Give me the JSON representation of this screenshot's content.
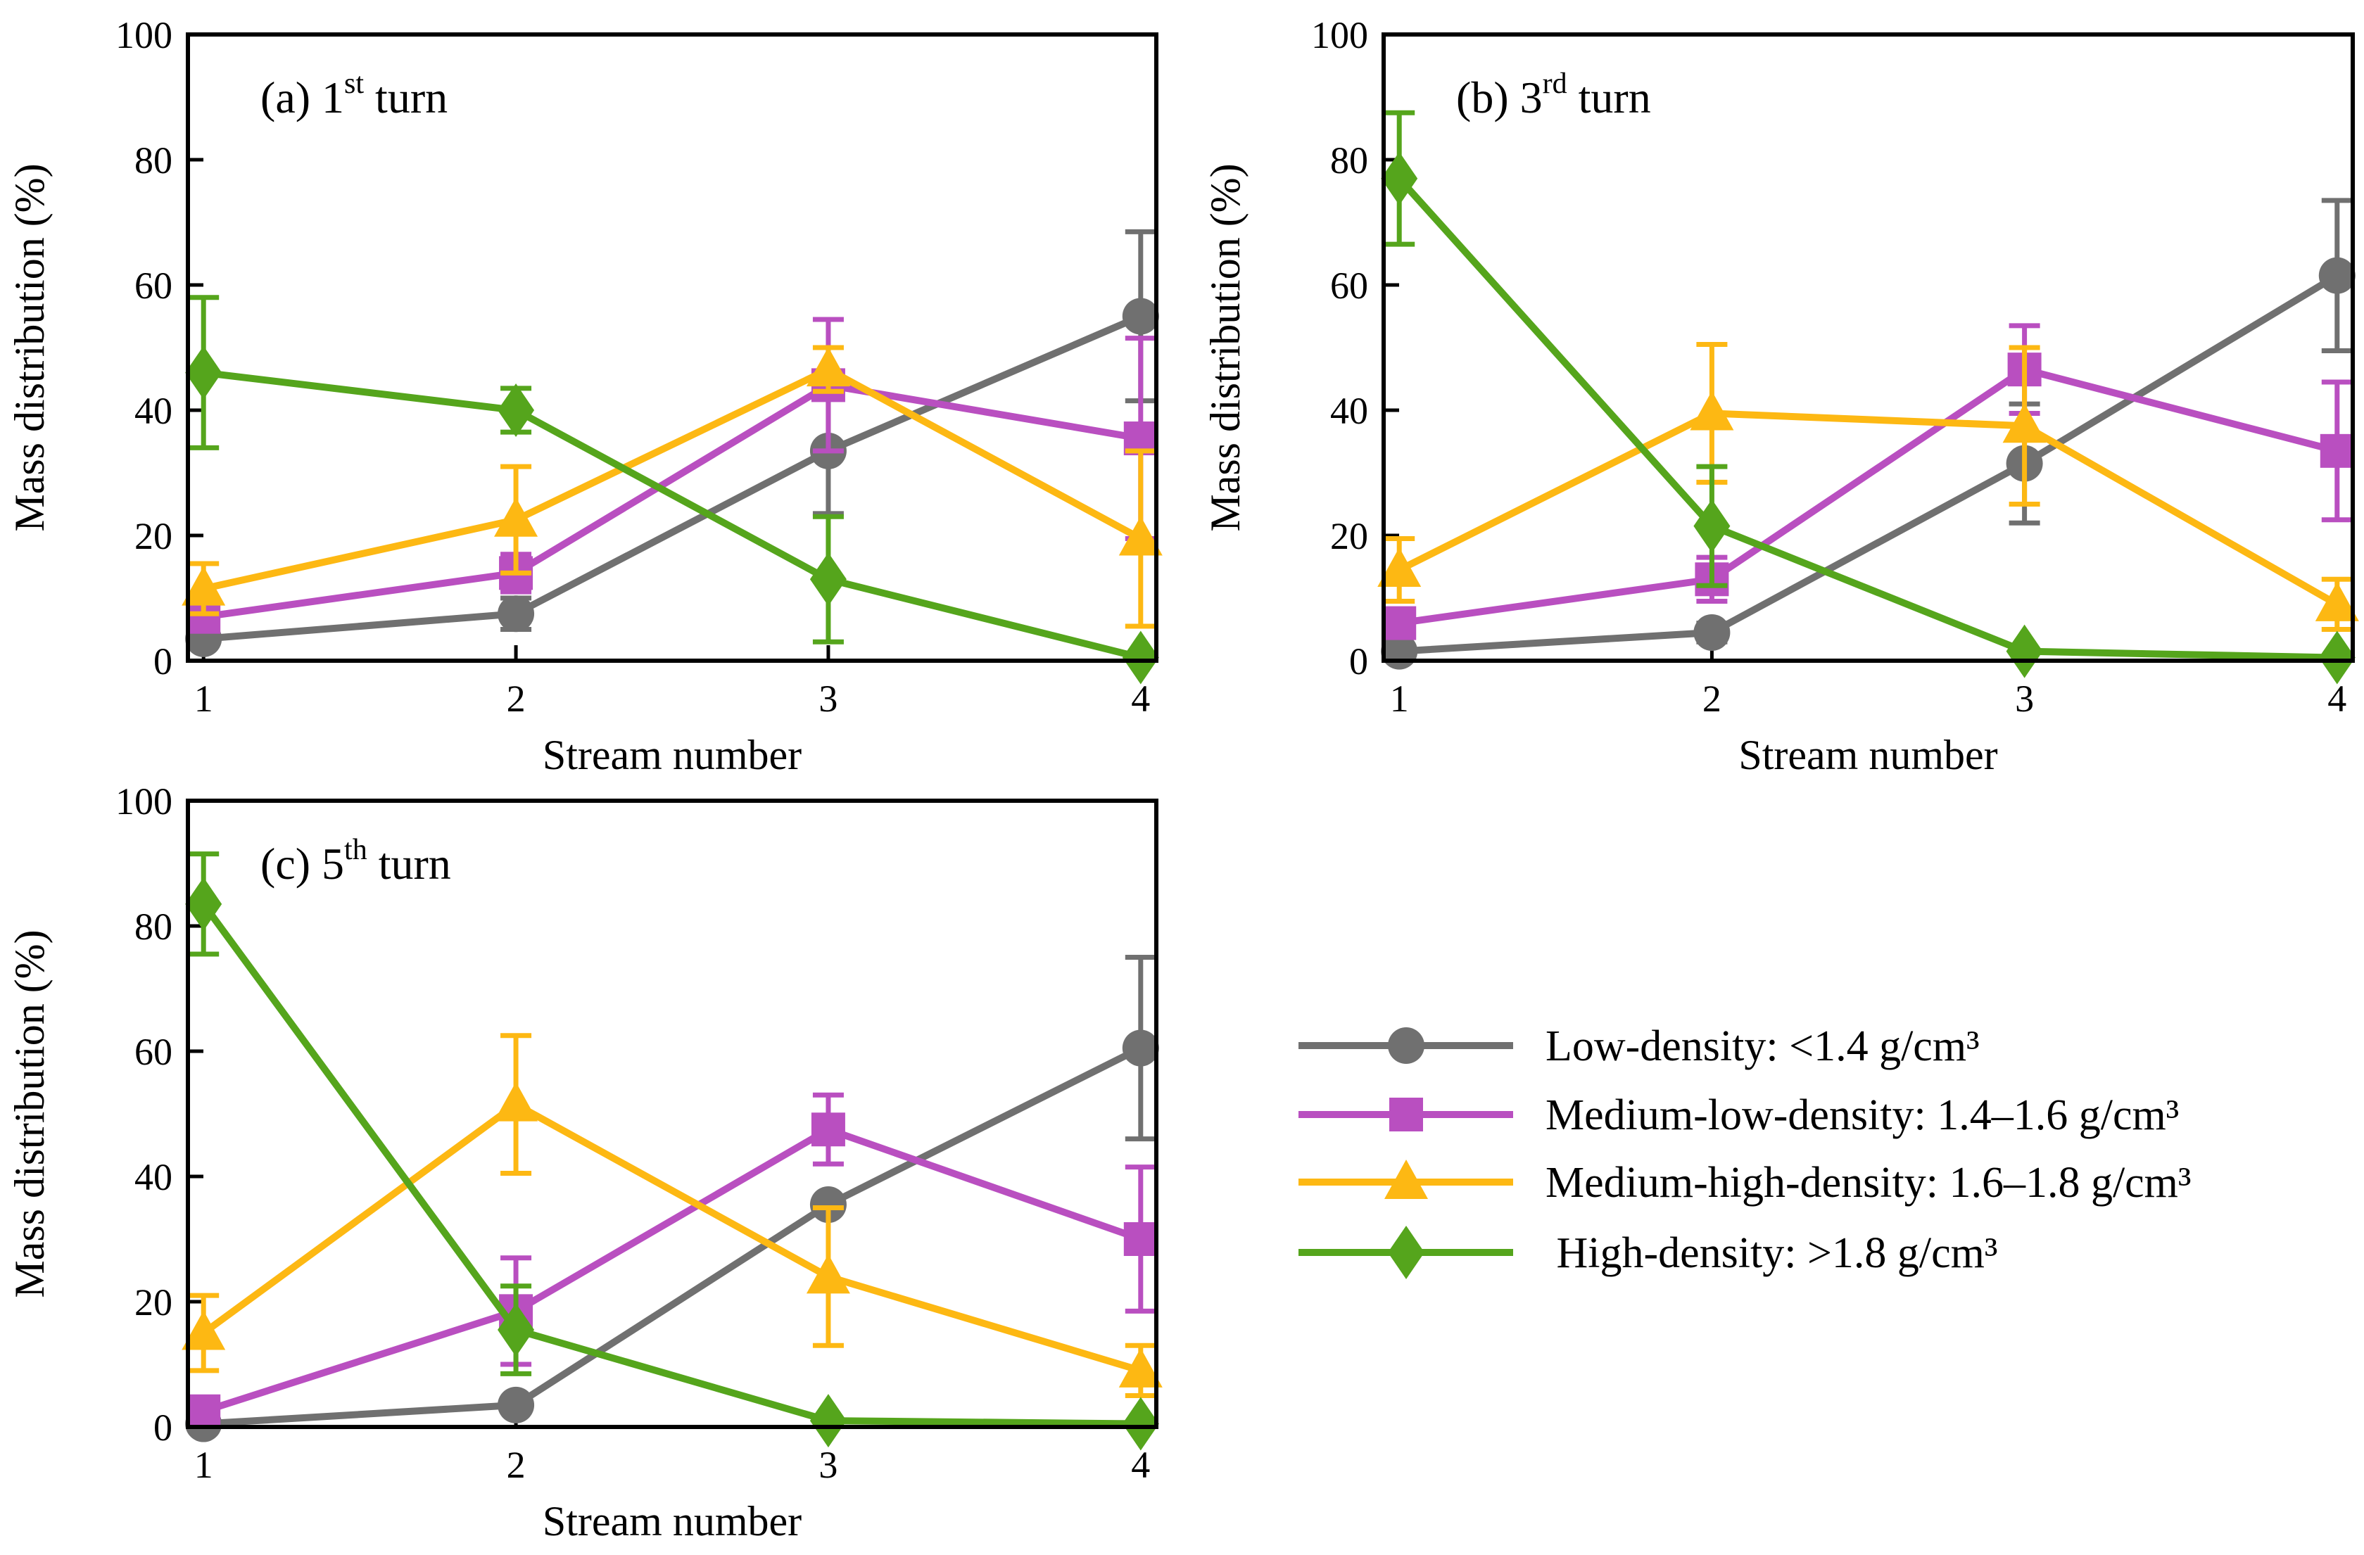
{
  "series_meta": [
    {
      "key": "low",
      "color": "#707070",
      "marker": "circle",
      "legend": "Low-density: <1.4 g/cm³"
    },
    {
      "key": "medlow",
      "color": "#B94FC0",
      "marker": "square",
      "legend": "Medium-low-density: 1.4–1.6 g/cm³"
    },
    {
      "key": "medhigh",
      "color": "#FDB813",
      "marker": "triangle",
      "legend": "Medium-high-density: 1.6–1.8 g/cm³"
    },
    {
      "key": "high",
      "color": "#55A51C",
      "marker": "diamond",
      "legend": " High-density: >1.8 g/cm³"
    }
  ],
  "chart_data": [
    {
      "type": "line",
      "panel_label": "(a) 1",
      "panel_sup": "st",
      "panel_suffix": " turn",
      "xlabel": "Stream number",
      "ylabel": "Mass distribution (%)",
      "x": [
        1,
        2,
        3,
        4
      ],
      "ylim": [
        0,
        100
      ],
      "yticks": [
        0,
        20,
        40,
        60,
        80,
        100
      ],
      "series": [
        {
          "name": "Low-density: <1.4 g/cm³",
          "values": [
            3.5,
            7.5,
            33.5,
            55
          ],
          "err": [
            0,
            2.5,
            10,
            13.5
          ]
        },
        {
          "name": "Medium-low-density: 1.4–1.6 g/cm³",
          "values": [
            7,
            14,
            44,
            35.5
          ],
          "err": [
            2,
            3,
            10.5,
            16
          ]
        },
        {
          "name": "Medium-high-density: 1.6–1.8 g/cm³",
          "values": [
            11.5,
            22.5,
            46.5,
            19.5
          ],
          "err": [
            4,
            8.5,
            3.5,
            14
          ]
        },
        {
          "name": "High-density: >1.8 g/cm³",
          "values": [
            46,
            40,
            13,
            0.5
          ],
          "err": [
            12,
            3.5,
            10,
            0
          ]
        }
      ]
    },
    {
      "type": "line",
      "panel_label": "(b) 3",
      "panel_sup": "rd",
      "panel_suffix": " turn",
      "xlabel": "Stream number",
      "ylabel": "Mass distribution (%)",
      "x": [
        1,
        2,
        3,
        4
      ],
      "ylim": [
        0,
        100
      ],
      "yticks": [
        0,
        20,
        40,
        60,
        80,
        100
      ],
      "series": [
        {
          "name": "Low-density: <1.4 g/cm³",
          "values": [
            1.5,
            4.5,
            31.5,
            61.5
          ],
          "err": [
            0,
            1.5,
            9.5,
            12
          ]
        },
        {
          "name": "Medium-low-density: 1.4–1.6 g/cm³",
          "values": [
            6,
            13,
            46.5,
            33.5
          ],
          "err": [
            1.5,
            3.5,
            7,
            11
          ]
        },
        {
          "name": "Medium-high-density: 1.6–1.8 g/cm³",
          "values": [
            14.5,
            39.5,
            37.5,
            9
          ],
          "err": [
            5,
            11,
            12.5,
            4
          ]
        },
        {
          "name": "High-density: >1.8 g/cm³",
          "values": [
            77,
            21.5,
            1.5,
            0.5
          ],
          "err": [
            10.5,
            9.5,
            0,
            0
          ]
        }
      ]
    },
    {
      "type": "line",
      "panel_label": "(c) 5",
      "panel_sup": "th",
      "panel_suffix": " turn",
      "xlabel": "Stream number",
      "ylabel": "Mass distribution (%)",
      "x": [
        1,
        2,
        3,
        4
      ],
      "ylim": [
        0,
        100
      ],
      "yticks": [
        0,
        20,
        40,
        60,
        80,
        100
      ],
      "series": [
        {
          "name": "Low-density: <1.4 g/cm³",
          "values": [
            0.5,
            3.5,
            35.5,
            60.5
          ],
          "err": [
            0,
            0,
            0,
            14.5
          ]
        },
        {
          "name": "Medium-low-density: 1.4–1.6 g/cm³",
          "values": [
            2.5,
            18.5,
            47.5,
            30
          ],
          "err": [
            0,
            8.5,
            5.5,
            11.5
          ]
        },
        {
          "name": "Medium-high-density: 1.6–1.8 g/cm³",
          "values": [
            15,
            51.5,
            24,
            9
          ],
          "err": [
            6,
            11,
            11,
            4
          ]
        },
        {
          "name": "High-density: >1.8 g/cm³",
          "values": [
            83.5,
            15.5,
            1,
            0.5
          ],
          "err": [
            8,
            7,
            0,
            0
          ]
        }
      ]
    }
  ]
}
